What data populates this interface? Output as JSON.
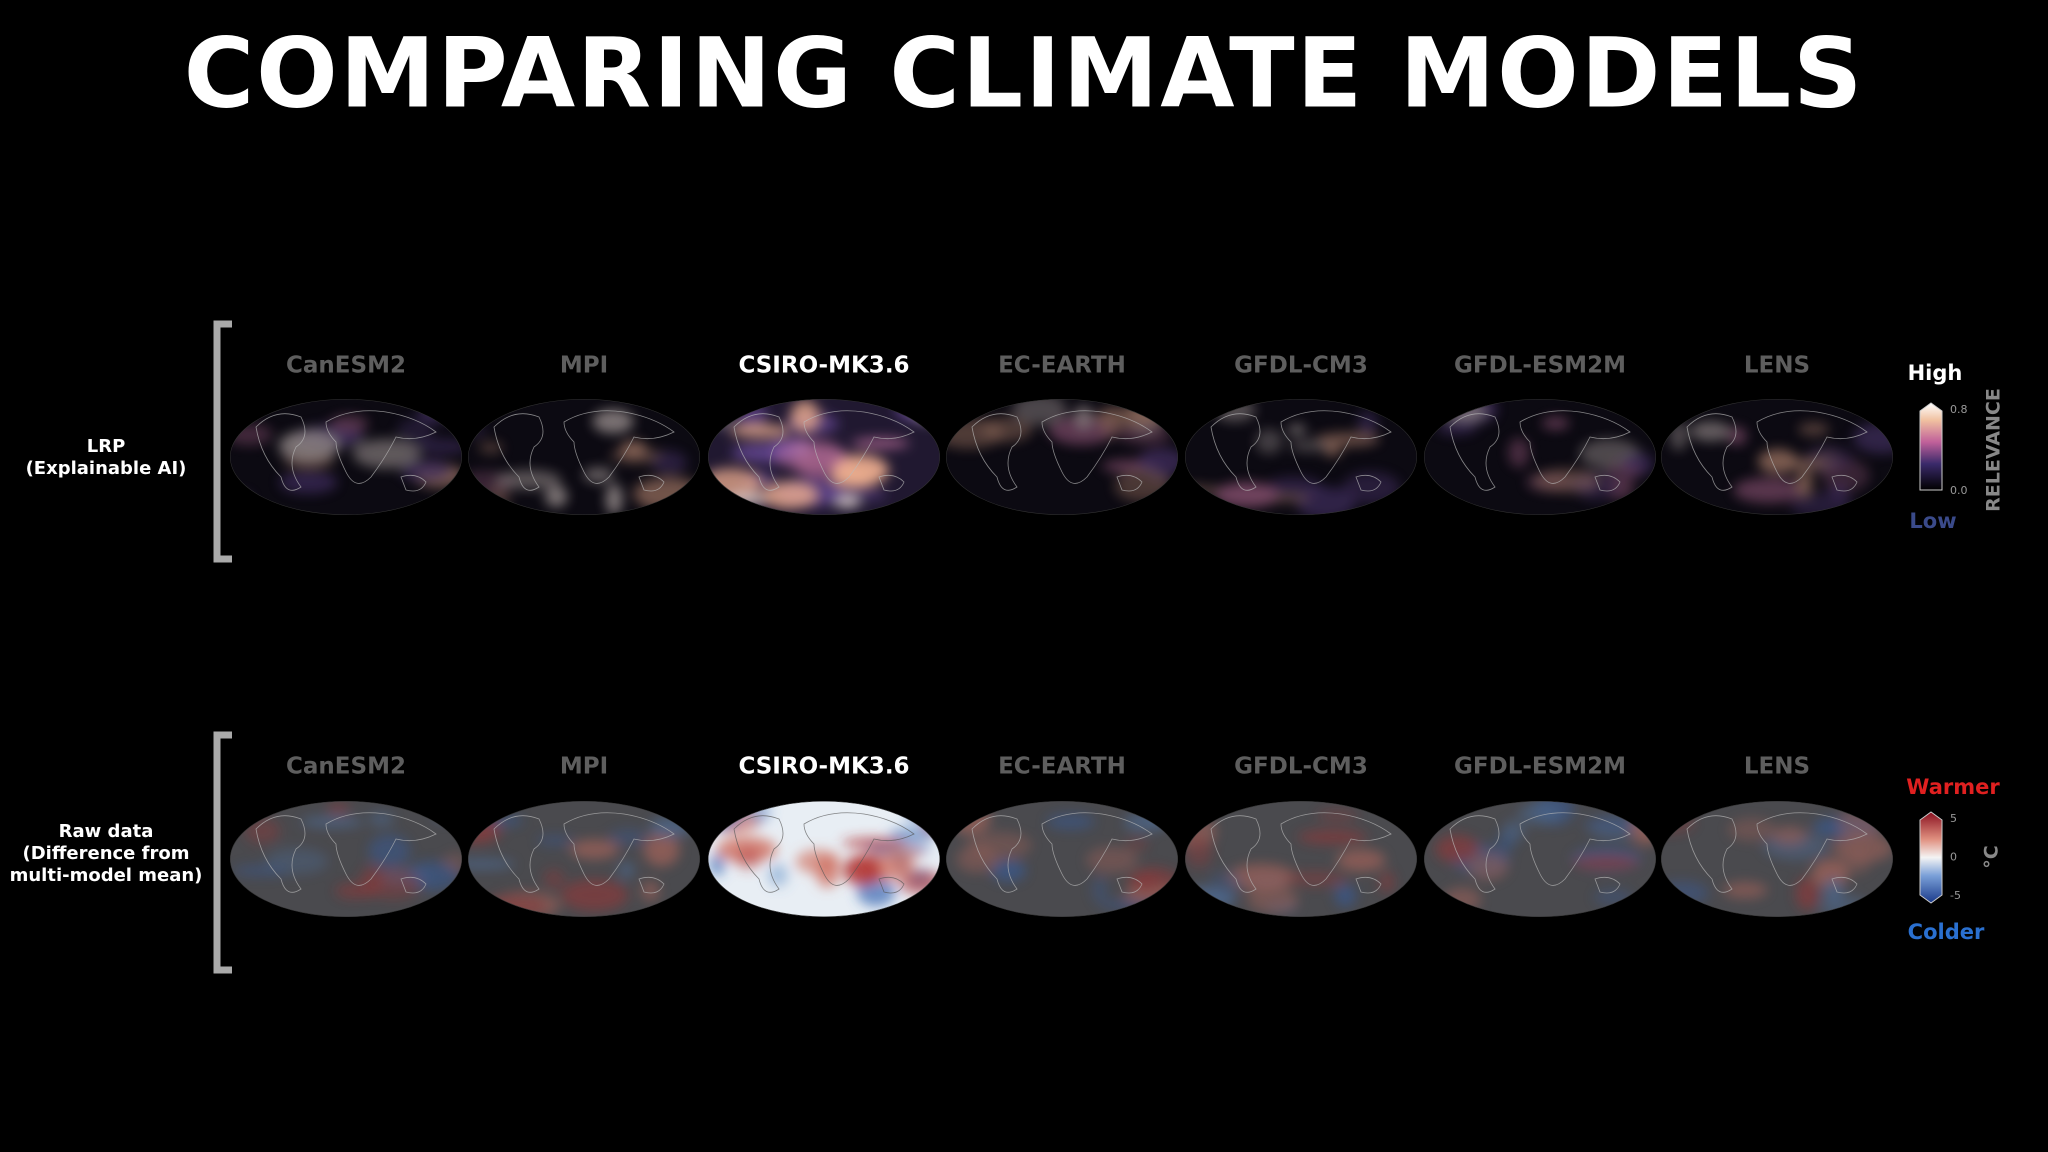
{
  "title": "COMPARING CLIMATE MODELS",
  "models": [
    "CanESM2",
    "MPI",
    "CSIRO-MK3.6",
    "EC-EARTH",
    "GFDL-CM3",
    "GFDL-ESM2M",
    "LENS"
  ],
  "rows": [
    {
      "label": [
        "LRP",
        "(Explainable AI)"
      ],
      "colorbar": {
        "top": "High",
        "bottom": "Low",
        "ticks": [
          "0.8",
          "0.0"
        ],
        "unit": "RELEVANCE"
      }
    },
    {
      "label": [
        "Raw data",
        "(Difference from",
        "multi-model mean)"
      ],
      "colorbar": {
        "top": "Warmer",
        "bottom": "Colder",
        "ticks": [
          "5",
          "0",
          "-5"
        ],
        "unit": "°C"
      }
    }
  ]
}
